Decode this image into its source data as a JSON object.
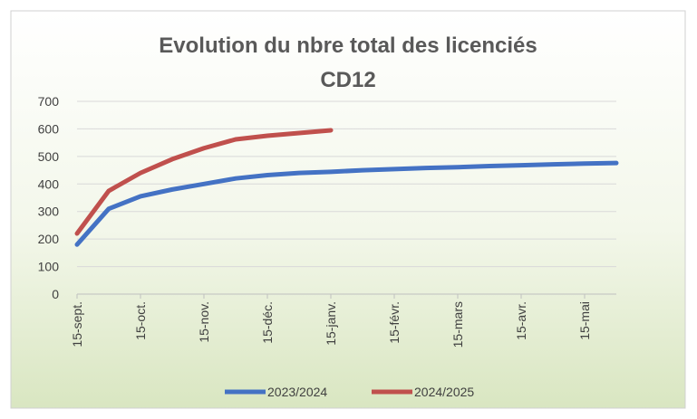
{
  "chart_data": {
    "type": "line",
    "title": "Evolution du nbre total des licenciés CD12",
    "categories": [
      "15-sept.",
      null,
      "15-oct.",
      null,
      "15-nov.",
      null,
      "15-déc.",
      null,
      "15-janv.",
      null,
      "15-févr.",
      null,
      "15-mars",
      null,
      "15-avr.",
      null,
      "15-mai",
      null
    ],
    "series": [
      {
        "name": "2023/2024",
        "color": "#4472c4",
        "values": [
          180,
          310,
          355,
          380,
          400,
          420,
          432,
          440,
          444,
          450,
          454,
          458,
          461,
          465,
          468,
          471,
          474,
          476
        ]
      },
      {
        "name": "2024/2025",
        "color": "#c0504d",
        "values": [
          220,
          375,
          440,
          490,
          530,
          562,
          575,
          585,
          595,
          null,
          null,
          null,
          null,
          null,
          null,
          null,
          null,
          null
        ]
      }
    ],
    "ylim": [
      0,
      700
    ],
    "yticks": [
      0,
      100,
      200,
      300,
      400,
      500,
      600,
      700
    ],
    "grid": true,
    "legend": "bottom"
  }
}
